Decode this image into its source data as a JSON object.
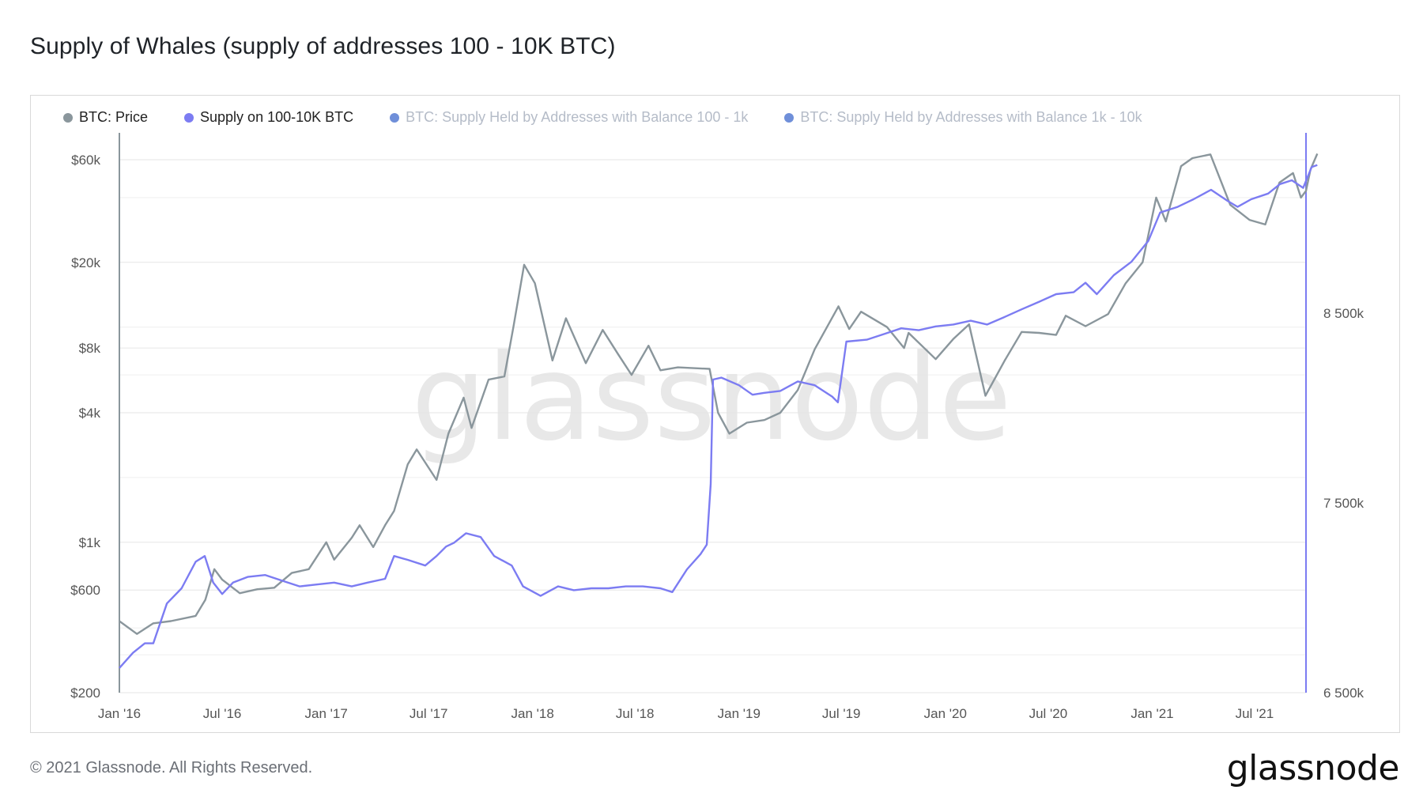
{
  "title": "Supply of Whales (supply of addresses 100 - 10K BTC)",
  "footer": "© 2021 Glassnode. All Rights Reserved.",
  "brand": "glassnode",
  "watermark": "glassnode",
  "colors": {
    "price": "#8a969c",
    "supply": "#7c7cf2",
    "s100_1k": "#6f8fd9",
    "s1k_10k": "#6f8fd9",
    "grid": "#e6e6e6",
    "axis_text": "#555555",
    "watermark": "#e3e3e3"
  },
  "legend": [
    {
      "label": "BTC: Price",
      "color": "#8a969c",
      "dim": false
    },
    {
      "label": "Supply on 100-10K BTC",
      "color": "#7c7cf2",
      "dim": false
    },
    {
      "label": "BTC: Supply Held by Addresses with Balance 100 - 1k",
      "color": "#6f8fd9",
      "dim": true
    },
    {
      "label": "BTC: Supply Held by Addresses with Balance 1k - 10k",
      "color": "#6f8fd9",
      "dim": true
    }
  ],
  "chart_data": {
    "type": "line",
    "title": "Supply of Whales (supply of addresses 100 - 10K BTC)",
    "x_ticks": [
      "Jan '16",
      "Jul '16",
      "Jan '17",
      "Jul '17",
      "Jan '18",
      "Jul '18",
      "Jan '19",
      "Jul '19",
      "Jan '20",
      "Jul '20",
      "Jan '21",
      "Jul '21"
    ],
    "x_range": [
      "2016-01-01",
      "2021-09-30"
    ],
    "left_axis": {
      "scale": "log",
      "range": [
        200,
        80000
      ],
      "ticks": [
        200,
        600,
        1000,
        4000,
        8000,
        20000,
        60000
      ],
      "tick_labels": [
        "$200",
        "$600",
        "$1k",
        "$4k",
        "$8k",
        "$20k",
        "$60k"
      ]
    },
    "right_axis": {
      "scale": "linear",
      "range": [
        6500000,
        9450000
      ],
      "ticks": [
        6500000,
        7500000,
        8500000
      ],
      "tick_labels": [
        "6 500k",
        "7 500k",
        "8 500k"
      ]
    },
    "grid": true,
    "legend_position": "top-left",
    "series": [
      {
        "name": "BTC: Price",
        "axis": "left",
        "points": [
          [
            "2016-01-01",
            430
          ],
          [
            "2016-02-01",
            375
          ],
          [
            "2016-03-01",
            420
          ],
          [
            "2016-04-01",
            430
          ],
          [
            "2016-05-15",
            455
          ],
          [
            "2016-06-01",
            540
          ],
          [
            "2016-06-17",
            750
          ],
          [
            "2016-07-01",
            670
          ],
          [
            "2016-08-01",
            580
          ],
          [
            "2016-09-01",
            605
          ],
          [
            "2016-10-01",
            615
          ],
          [
            "2016-11-01",
            720
          ],
          [
            "2016-12-01",
            750
          ],
          [
            "2017-01-01",
            1000
          ],
          [
            "2017-01-15",
            830
          ],
          [
            "2017-02-15",
            1050
          ],
          [
            "2017-03-01",
            1200
          ],
          [
            "2017-03-25",
            950
          ],
          [
            "2017-04-15",
            1200
          ],
          [
            "2017-05-01",
            1400
          ],
          [
            "2017-05-25",
            2300
          ],
          [
            "2017-06-10",
            2700
          ],
          [
            "2017-07-15",
            1950
          ],
          [
            "2017-08-05",
            3200
          ],
          [
            "2017-09-01",
            4700
          ],
          [
            "2017-09-15",
            3400
          ],
          [
            "2017-10-15",
            5700
          ],
          [
            "2017-11-12",
            5900
          ],
          [
            "2017-11-28",
            10000
          ],
          [
            "2017-12-17",
            19500
          ],
          [
            "2018-01-05",
            16000
          ],
          [
            "2018-02-05",
            7000
          ],
          [
            "2018-03-01",
            11000
          ],
          [
            "2018-04-05",
            6800
          ],
          [
            "2018-05-05",
            9700
          ],
          [
            "2018-06-01",
            7500
          ],
          [
            "2018-06-25",
            6000
          ],
          [
            "2018-07-25",
            8200
          ],
          [
            "2018-08-15",
            6300
          ],
          [
            "2018-09-15",
            6500
          ],
          [
            "2018-11-10",
            6400
          ],
          [
            "2018-11-25",
            4000
          ],
          [
            "2018-12-15",
            3200
          ],
          [
            "2019-01-15",
            3600
          ],
          [
            "2019-02-15",
            3700
          ],
          [
            "2019-03-15",
            4000
          ],
          [
            "2019-04-15",
            5100
          ],
          [
            "2019-05-15",
            7900
          ],
          [
            "2019-06-26",
            12500
          ],
          [
            "2019-07-15",
            9800
          ],
          [
            "2019-08-05",
            11800
          ],
          [
            "2019-09-20",
            10000
          ],
          [
            "2019-10-20",
            8000
          ],
          [
            "2019-10-28",
            9400
          ],
          [
            "2019-12-15",
            7100
          ],
          [
            "2020-01-15",
            8800
          ],
          [
            "2020-02-12",
            10300
          ],
          [
            "2020-03-12",
            4800
          ],
          [
            "2020-04-15",
            7000
          ],
          [
            "2020-05-15",
            9500
          ],
          [
            "2020-06-15",
            9400
          ],
          [
            "2020-07-15",
            9200
          ],
          [
            "2020-08-01",
            11300
          ],
          [
            "2020-09-05",
            10100
          ],
          [
            "2020-10-15",
            11500
          ],
          [
            "2020-11-15",
            16000
          ],
          [
            "2020-12-15",
            20000
          ],
          [
            "2021-01-08",
            40000
          ],
          [
            "2021-01-25",
            31000
          ],
          [
            "2021-02-21",
            56000
          ],
          [
            "2021-03-13",
            61000
          ],
          [
            "2021-04-14",
            63500
          ],
          [
            "2021-05-19",
            37000
          ],
          [
            "2021-06-22",
            31500
          ],
          [
            "2021-07-20",
            30000
          ],
          [
            "2021-08-14",
            47000
          ],
          [
            "2021-09-07",
            52000
          ],
          [
            "2021-09-21",
            40000
          ],
          [
            "2021-09-30",
            43000
          ],
          [
            "2021-10-08",
            54000
          ],
          [
            "2021-10-20",
            64000
          ]
        ]
      },
      {
        "name": "Supply on 100-10K BTC",
        "axis": "right",
        "points": [
          [
            "2016-01-01",
            6630000
          ],
          [
            "2016-01-25",
            6710000
          ],
          [
            "2016-02-15",
            6760000
          ],
          [
            "2016-03-01",
            6760000
          ],
          [
            "2016-03-25",
            6970000
          ],
          [
            "2016-04-20",
            7050000
          ],
          [
            "2016-05-15",
            7190000
          ],
          [
            "2016-05-31",
            7220000
          ],
          [
            "2016-06-15",
            7080000
          ],
          [
            "2016-07-01",
            7020000
          ],
          [
            "2016-07-20",
            7080000
          ],
          [
            "2016-08-15",
            7110000
          ],
          [
            "2016-09-15",
            7120000
          ],
          [
            "2016-10-15",
            7090000
          ],
          [
            "2016-11-15",
            7060000
          ],
          [
            "2016-12-15",
            7070000
          ],
          [
            "2017-01-15",
            7080000
          ],
          [
            "2017-02-15",
            7060000
          ],
          [
            "2017-03-15",
            7080000
          ],
          [
            "2017-04-15",
            7100000
          ],
          [
            "2017-05-01",
            7220000
          ],
          [
            "2017-05-25",
            7200000
          ],
          [
            "2017-06-25",
            7170000
          ],
          [
            "2017-07-15",
            7220000
          ],
          [
            "2017-08-01",
            7270000
          ],
          [
            "2017-08-15",
            7290000
          ],
          [
            "2017-09-05",
            7340000
          ],
          [
            "2017-10-01",
            7320000
          ],
          [
            "2017-10-25",
            7220000
          ],
          [
            "2017-11-25",
            7170000
          ],
          [
            "2017-12-15",
            7060000
          ],
          [
            "2018-01-15",
            7010000
          ],
          [
            "2018-02-15",
            7060000
          ],
          [
            "2018-03-15",
            7040000
          ],
          [
            "2018-04-15",
            7050000
          ],
          [
            "2018-05-15",
            7050000
          ],
          [
            "2018-06-15",
            7060000
          ],
          [
            "2018-07-15",
            7060000
          ],
          [
            "2018-08-15",
            7050000
          ],
          [
            "2018-09-05",
            7030000
          ],
          [
            "2018-10-01",
            7150000
          ],
          [
            "2018-10-25",
            7230000
          ],
          [
            "2018-11-05",
            7280000
          ],
          [
            "2018-11-12",
            7600000
          ],
          [
            "2018-11-16",
            8150000
          ],
          [
            "2018-12-01",
            8160000
          ],
          [
            "2019-01-01",
            8120000
          ],
          [
            "2019-01-25",
            8070000
          ],
          [
            "2019-02-15",
            8080000
          ],
          [
            "2019-03-15",
            8090000
          ],
          [
            "2019-04-15",
            8140000
          ],
          [
            "2019-05-15",
            8120000
          ],
          [
            "2019-06-15",
            8060000
          ],
          [
            "2019-06-25",
            8030000
          ],
          [
            "2019-07-10",
            8350000
          ],
          [
            "2019-08-15",
            8360000
          ],
          [
            "2019-09-15",
            8390000
          ],
          [
            "2019-10-15",
            8420000
          ],
          [
            "2019-11-15",
            8410000
          ],
          [
            "2019-12-15",
            8430000
          ],
          [
            "2020-01-15",
            8440000
          ],
          [
            "2020-02-15",
            8460000
          ],
          [
            "2020-03-15",
            8440000
          ],
          [
            "2020-04-15",
            8480000
          ],
          [
            "2020-05-15",
            8520000
          ],
          [
            "2020-06-15",
            8560000
          ],
          [
            "2020-07-15",
            8600000
          ],
          [
            "2020-08-15",
            8610000
          ],
          [
            "2020-09-05",
            8660000
          ],
          [
            "2020-09-25",
            8600000
          ],
          [
            "2020-10-25",
            8700000
          ],
          [
            "2020-11-25",
            8770000
          ],
          [
            "2020-12-25",
            8880000
          ],
          [
            "2021-01-15",
            9030000
          ],
          [
            "2021-02-15",
            9060000
          ],
          [
            "2021-03-15",
            9100000
          ],
          [
            "2021-04-15",
            9150000
          ],
          [
            "2021-05-15",
            9090000
          ],
          [
            "2021-06-01",
            9060000
          ],
          [
            "2021-06-25",
            9100000
          ],
          [
            "2021-07-25",
            9130000
          ],
          [
            "2021-08-15",
            9180000
          ],
          [
            "2021-09-05",
            9200000
          ],
          [
            "2021-09-25",
            9160000
          ],
          [
            "2021-10-10",
            9270000
          ],
          [
            "2021-10-20",
            9280000
          ]
        ]
      }
    ]
  }
}
